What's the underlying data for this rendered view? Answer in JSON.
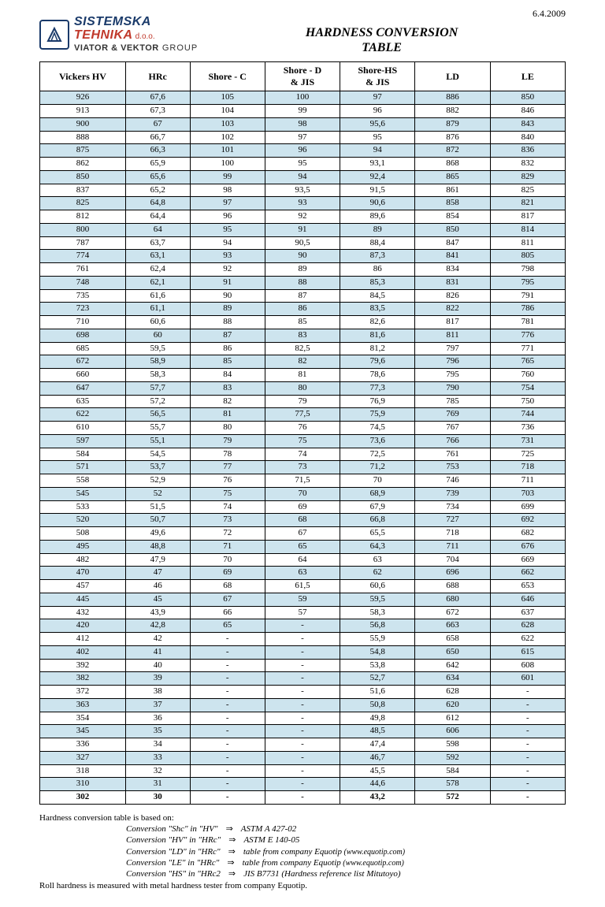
{
  "date": "6.4.2009",
  "logo": {
    "line1": "SISTEMSKA",
    "line2": "TEHNIKA",
    "doo": "d.o.o.",
    "group_bold": "VIATOR & VEKTOR",
    "group_rest": "GROUP"
  },
  "title_line1": "HARDNESS CONVERSION",
  "title_line2": "TABLE",
  "columns": [
    "Vickers HV",
    "HRc",
    "Shore - C",
    "Shore - D\n& JIS",
    "Shore-HS\n& JIS",
    "LD",
    "LE"
  ],
  "col_widths_pct": [
    16,
    12,
    14,
    14,
    14,
    14,
    14
  ],
  "row_colors": {
    "even": "#cde4ee",
    "odd": "#ffffff"
  },
  "last_row_bold": true,
  "rows": [
    [
      "926",
      "67,6",
      "105",
      "100",
      "97",
      "886",
      "850"
    ],
    [
      "913",
      "67,3",
      "104",
      "99",
      "96",
      "882",
      "846"
    ],
    [
      "900",
      "67",
      "103",
      "98",
      "95,6",
      "879",
      "843"
    ],
    [
      "888",
      "66,7",
      "102",
      "97",
      "95",
      "876",
      "840"
    ],
    [
      "875",
      "66,3",
      "101",
      "96",
      "94",
      "872",
      "836"
    ],
    [
      "862",
      "65,9",
      "100",
      "95",
      "93,1",
      "868",
      "832"
    ],
    [
      "850",
      "65,6",
      "99",
      "94",
      "92,4",
      "865",
      "829"
    ],
    [
      "837",
      "65,2",
      "98",
      "93,5",
      "91,5",
      "861",
      "825"
    ],
    [
      "825",
      "64,8",
      "97",
      "93",
      "90,6",
      "858",
      "821"
    ],
    [
      "812",
      "64,4",
      "96",
      "92",
      "89,6",
      "854",
      "817"
    ],
    [
      "800",
      "64",
      "95",
      "91",
      "89",
      "850",
      "814"
    ],
    [
      "787",
      "63,7",
      "94",
      "90,5",
      "88,4",
      "847",
      "811"
    ],
    [
      "774",
      "63,1",
      "93",
      "90",
      "87,3",
      "841",
      "805"
    ],
    [
      "761",
      "62,4",
      "92",
      "89",
      "86",
      "834",
      "798"
    ],
    [
      "748",
      "62,1",
      "91",
      "88",
      "85,3",
      "831",
      "795"
    ],
    [
      "735",
      "61,6",
      "90",
      "87",
      "84,5",
      "826",
      "791"
    ],
    [
      "723",
      "61,1",
      "89",
      "86",
      "83,5",
      "822",
      "786"
    ],
    [
      "710",
      "60,6",
      "88",
      "85",
      "82,6",
      "817",
      "781"
    ],
    [
      "698",
      "60",
      "87",
      "83",
      "81,6",
      "811",
      "776"
    ],
    [
      "685",
      "59,5",
      "86",
      "82,5",
      "81,2",
      "797",
      "771"
    ],
    [
      "672",
      "58,9",
      "85",
      "82",
      "79,6",
      "796",
      "765"
    ],
    [
      "660",
      "58,3",
      "84",
      "81",
      "78,6",
      "795",
      "760"
    ],
    [
      "647",
      "57,7",
      "83",
      "80",
      "77,3",
      "790",
      "754"
    ],
    [
      "635",
      "57,2",
      "82",
      "79",
      "76,9",
      "785",
      "750"
    ],
    [
      "622",
      "56,5",
      "81",
      "77,5",
      "75,9",
      "769",
      "744"
    ],
    [
      "610",
      "55,7",
      "80",
      "76",
      "74,5",
      "767",
      "736"
    ],
    [
      "597",
      "55,1",
      "79",
      "75",
      "73,6",
      "766",
      "731"
    ],
    [
      "584",
      "54,5",
      "78",
      "74",
      "72,5",
      "761",
      "725"
    ],
    [
      "571",
      "53,7",
      "77",
      "73",
      "71,2",
      "753",
      "718"
    ],
    [
      "558",
      "52,9",
      "76",
      "71,5",
      "70",
      "746",
      "711"
    ],
    [
      "545",
      "52",
      "75",
      "70",
      "68,9",
      "739",
      "703"
    ],
    [
      "533",
      "51,5",
      "74",
      "69",
      "67,9",
      "734",
      "699"
    ],
    [
      "520",
      "50,7",
      "73",
      "68",
      "66,8",
      "727",
      "692"
    ],
    [
      "508",
      "49,6",
      "72",
      "67",
      "65,5",
      "718",
      "682"
    ],
    [
      "495",
      "48,8",
      "71",
      "65",
      "64,3",
      "711",
      "676"
    ],
    [
      "482",
      "47,9",
      "70",
      "64",
      "63",
      "704",
      "669"
    ],
    [
      "470",
      "47",
      "69",
      "63",
      "62",
      "696",
      "662"
    ],
    [
      "457",
      "46",
      "68",
      "61,5",
      "60,6",
      "688",
      "653"
    ],
    [
      "445",
      "45",
      "67",
      "59",
      "59,5",
      "680",
      "646"
    ],
    [
      "432",
      "43,9",
      "66",
      "57",
      "58,3",
      "672",
      "637"
    ],
    [
      "420",
      "42,8",
      "65",
      "-",
      "56,8",
      "663",
      "628"
    ],
    [
      "412",
      "42",
      "-",
      "-",
      "55,9",
      "658",
      "622"
    ],
    [
      "402",
      "41",
      "-",
      "-",
      "54,8",
      "650",
      "615"
    ],
    [
      "392",
      "40",
      "-",
      "-",
      "53,8",
      "642",
      "608"
    ],
    [
      "382",
      "39",
      "-",
      "-",
      "52,7",
      "634",
      "601"
    ],
    [
      "372",
      "38",
      "-",
      "-",
      "51,6",
      "628",
      "-"
    ],
    [
      "363",
      "37",
      "-",
      "-",
      "50,8",
      "620",
      "-"
    ],
    [
      "354",
      "36",
      "-",
      "-",
      "49,8",
      "612",
      "-"
    ],
    [
      "345",
      "35",
      "-",
      "-",
      "48,5",
      "606",
      "-"
    ],
    [
      "336",
      "34",
      "-",
      "-",
      "47,4",
      "598",
      "-"
    ],
    [
      "327",
      "33",
      "-",
      "-",
      "46,7",
      "592",
      "-"
    ],
    [
      "318",
      "32",
      "-",
      "-",
      "45,5",
      "584",
      "-"
    ],
    [
      "310",
      "31",
      "-",
      "-",
      "44,6",
      "578",
      "-"
    ],
    [
      "302",
      "30",
      "-",
      "-",
      "43,2",
      "572",
      "-"
    ]
  ],
  "footer": {
    "intro": "Hardness conversion table is based on:",
    "items": [
      {
        "left": "Conversion \"Shc\" in \"HV\"",
        "right": "ASTM A 427-02"
      },
      {
        "left": "Conversion \"HV\" in \"HRc\"",
        "right": "ASTM E 140-05"
      },
      {
        "left": "Conversion \"LD\" in \"HRc\"",
        "right": "table from company Equotip",
        "src": "(www.equotip.com)"
      },
      {
        "left": "Conversion \"LE\" in \"HRc\"",
        "right": "table from company Equotip",
        "src": "(www.equotip.com)"
      },
      {
        "left": "Conversion \"HS\" in \"HRc2",
        "right": "JIS B7731 (Hardness reference list Mitutoyo)"
      }
    ],
    "outro": "Roll hardness is measured with metal hardness tester from company Equotip."
  }
}
